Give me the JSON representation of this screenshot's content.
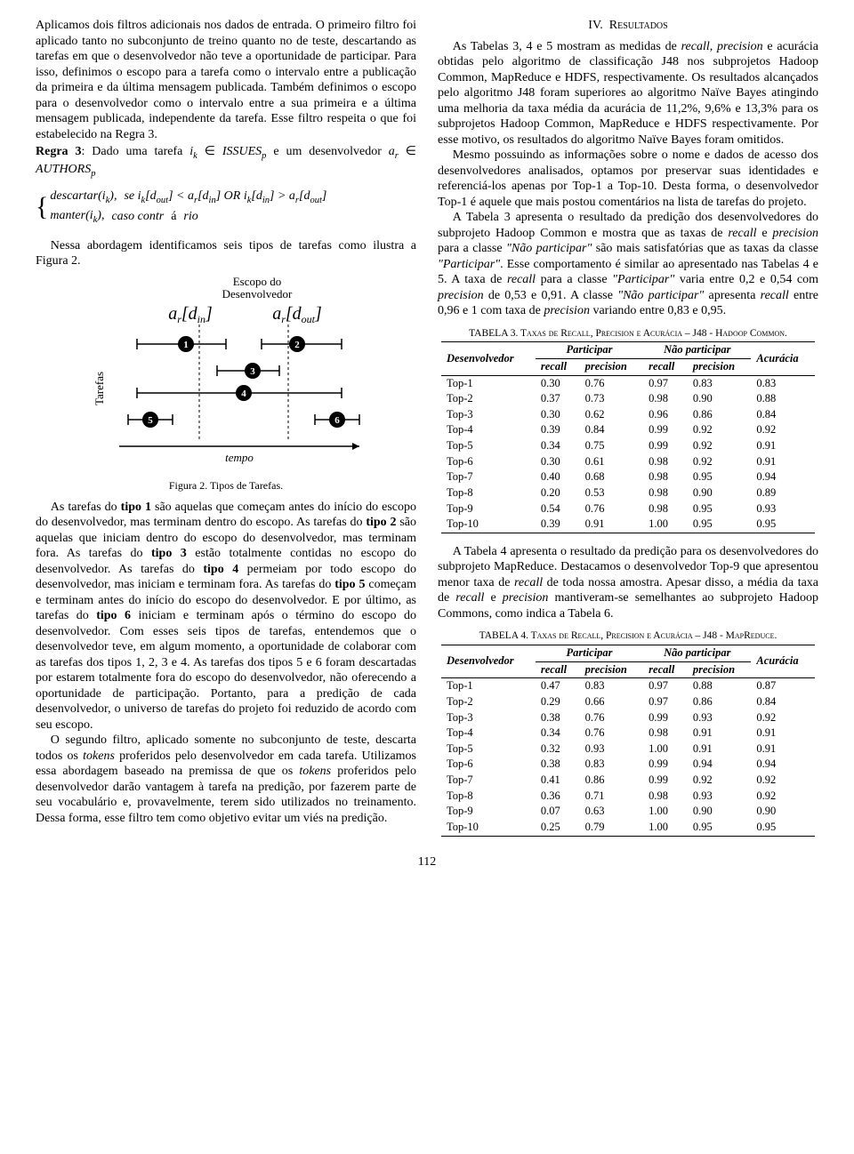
{
  "left": {
    "p1": "Aplicamos dois filtros adicionais nos dados de entrada. O primeiro filtro foi aplicado tanto no subconjunto de treino quanto no de teste, descartando as tarefas em que o desenvolvedor não teve a oportunidade de participar. Para isso, definimos o escopo para a tarefa como o intervalo entre a publicação da primeira e da última mensagem publicada. Também definimos o escopo para o desenvolvedor como o intervalo entre a sua primeira e a última mensagem publicada, independente da tarefa. Esse filtro respeita o que foi estabelecido na Regra 3.",
    "regra_pre": "Regra 3: Dado uma tarefa ",
    "regra_mid1": " ∈ ISSUES",
    "regra_mid2": " e um desenvolvedor ",
    "regra_mid3": " ∈ AUTHORS",
    "formula": {
      "line1a": "descartar(i",
      "line1b": "),",
      "line1c": "se i",
      "line1d": "[d",
      "line1e": "] < a",
      "line1f": "[d",
      "line1g": "] OR i",
      "line1h": "[d",
      "line1i": "] > a",
      "line1j": "[d",
      "line1k": "]",
      "line2a": "manter(i",
      "line2b": "),",
      "line2c": "caso contrário"
    },
    "p2": "Nessa abordagem identificamos seis tipos de tarefas como ilustra a Figura 2.",
    "fig": {
      "escopo": "Escopo do\nDesenvolvedor",
      "a_in": "a",
      "d_in": "[d",
      "in_sub": "in",
      "close": "]",
      "a_out": "a",
      "d_out": "[d",
      "out_sub": "out",
      "tarefas_label": "Tarefas",
      "tempo": "tempo",
      "caption": "Figura 2. Tipos de Tarefas.",
      "circles": [
        "1",
        "2",
        "3",
        "4",
        "5",
        "6"
      ]
    },
    "p3": "As tarefas do tipo 1 são aquelas que começam antes do início do escopo do desenvolvedor, mas terminam dentro do escopo. As tarefas do tipo 2 são aquelas que iniciam dentro do escopo do desenvolvedor, mas terminam fora. As tarefas do tipo 3 estão totalmente contidas no escopo do desenvolvedor. As tarefas do tipo 4 permeiam por todo escopo do desenvolvedor, mas iniciam e terminam fora. As tarefas do tipo 5 começam e terminam antes do início do escopo do desenvolvedor. E por último, as tarefas do tipo 6 iniciam e terminam após o término do escopo do desenvolvedor. Com esses seis tipos de tarefas, entendemos que o desenvolvedor teve, em algum momento, a oportunidade de colaborar com as tarefas dos tipos 1, 2, 3 e 4. As tarefas dos tipos 5 e 6 foram descartadas por estarem totalmente fora do escopo do desenvolvedor, não oferecendo a oportunidade de participação. Portanto, para a predição de cada desenvolvedor, o universo de tarefas do projeto foi reduzido de acordo com seu escopo.",
    "p4": "O segundo filtro, aplicado somente no subconjunto de teste, descarta todos os tokens proferidos pelo desenvolvedor em cada tarefa. Utilizamos essa abordagem baseado na premissa de que os tokens proferidos pelo desenvolvedor darão vantagem à tarefa na predição, por fazerem parte de seu vocabulário e, provavelmente, terem sido utilizados no treinamento. Dessa forma, esse filtro tem como objetivo evitar um viés na predição."
  },
  "right": {
    "section_num": "IV.",
    "section_title": "Resultados",
    "p1": "As Tabelas 3, 4 e 5 mostram as medidas de recall, precision e acurácia obtidas pelo algoritmo de classificação J48 nos subprojetos Hadoop Common, MapReduce e HDFS, respectivamente. Os resultados alcançados pelo algoritmo J48 foram superiores ao algoritmo Naïve Bayes atingindo uma melhoria da taxa média da acurácia de 11,2%, 9,6% e 13,3% para os subprojetos Hadoop Common, MapReduce e HDFS respectivamente. Por esse motivo, os resultados do algoritmo Naïve Bayes foram omitidos.",
    "p2": "Mesmo possuindo as informações sobre o nome e dados de acesso dos desenvolvedores analisados, optamos por preservar suas identidades e referenciá-los apenas por Top-1 a Top-10. Desta forma, o desenvolvedor Top-1 é aquele que mais postou comentários na lista de tarefas do projeto.",
    "p3": "A Tabela 3 apresenta o resultado da predição dos desenvolvedores do subprojeto Hadoop Common e mostra que as taxas de recall e precision para a classe \"Não participar\" são mais satisfatórias que as taxas da classe \"Participar\". Esse comportamento é similar ao apresentado nas Tabelas 4 e 5. A taxa de recall para a classe \"Participar\" varia entre 0,2 e 0,54 com precision de 0,53 e 0,91. A classe \"Não participar\" apresenta recall entre 0,96 e 1 com taxa de precision variando entre 0,83 e 0,95.",
    "tbl3": {
      "caption": "TABELA 3. Taxas de Recall, Precision e Acurácia – J48 - Hadoop Common.",
      "head": {
        "dev": "Desenvolvedor",
        "part": "Participar",
        "npart": "Não participar",
        "acc": "Acurácia",
        "rec": "recall",
        "prec": "precision"
      },
      "rows": [
        [
          "Top-1",
          "0.30",
          "0.76",
          "0.97",
          "0.83",
          "0.83"
        ],
        [
          "Top-2",
          "0.37",
          "0.73",
          "0.98",
          "0.90",
          "0.88"
        ],
        [
          "Top-3",
          "0.30",
          "0.62",
          "0.96",
          "0.86",
          "0.84"
        ],
        [
          "Top-4",
          "0.39",
          "0.84",
          "0.99",
          "0.92",
          "0.92"
        ],
        [
          "Top-5",
          "0.34",
          "0.75",
          "0.99",
          "0.92",
          "0.91"
        ],
        [
          "Top-6",
          "0.30",
          "0.61",
          "0.98",
          "0.92",
          "0.91"
        ],
        [
          "Top-7",
          "0.40",
          "0.68",
          "0.98",
          "0.95",
          "0.94"
        ],
        [
          "Top-8",
          "0.20",
          "0.53",
          "0.98",
          "0.90",
          "0.89"
        ],
        [
          "Top-9",
          "0.54",
          "0.76",
          "0.98",
          "0.95",
          "0.93"
        ],
        [
          "Top-10",
          "0.39",
          "0.91",
          "1.00",
          "0.95",
          "0.95"
        ]
      ]
    },
    "p4": "A Tabela 4 apresenta o resultado da predição para os desenvolvedores do subprojeto MapReduce. Destacamos o desenvolvedor Top-9 que apresentou menor taxa de recall de toda nossa amostra. Apesar disso, a média da taxa de recall e precision mantiveram-se semelhantes ao subprojeto Hadoop Commons, como indica a Tabela 6.",
    "tbl4": {
      "caption": "TABELA 4. Taxas de Recall, Precision e Acurácia – J48 - MapReduce.",
      "rows": [
        [
          "Top-1",
          "0.47",
          "0.83",
          "0.97",
          "0.88",
          "0.87"
        ],
        [
          "Top-2",
          "0.29",
          "0.66",
          "0.97",
          "0.86",
          "0.84"
        ],
        [
          "Top-3",
          "0.38",
          "0.76",
          "0.99",
          "0.93",
          "0.92"
        ],
        [
          "Top-4",
          "0.34",
          "0.76",
          "0.98",
          "0.91",
          "0.91"
        ],
        [
          "Top-5",
          "0.32",
          "0.93",
          "1.00",
          "0.91",
          "0.91"
        ],
        [
          "Top-6",
          "0.38",
          "0.83",
          "0.99",
          "0.94",
          "0.94"
        ],
        [
          "Top-7",
          "0.41",
          "0.86",
          "0.99",
          "0.92",
          "0.92"
        ],
        [
          "Top-8",
          "0.36",
          "0.71",
          "0.98",
          "0.93",
          "0.92"
        ],
        [
          "Top-9",
          "0.07",
          "0.63",
          "1.00",
          "0.90",
          "0.90"
        ],
        [
          "Top-10",
          "0.25",
          "0.79",
          "1.00",
          "0.95",
          "0.95"
        ]
      ]
    }
  },
  "page_num": "112",
  "style": {
    "circle_fill": "#000000",
    "circle_text": "#ffffff",
    "line_color": "#000000"
  }
}
